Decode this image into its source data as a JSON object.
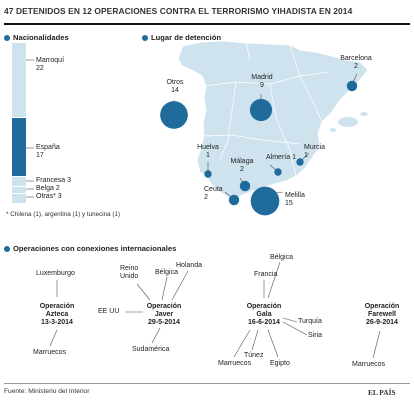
{
  "title": "47 DETENIDOS EN 12 OPERACIONES CONTRA EL TERRORISMO YIHADISTA EN 2014",
  "colors": {
    "light": "#cfe3ef",
    "dark": "#1f6b9b",
    "line": "#555555",
    "title_rule": "#111111"
  },
  "nationalities": {
    "heading": "Nacionalidades",
    "items": [
      {
        "name": "Marroquí",
        "value": 22
      },
      {
        "name": "España",
        "value": 17
      },
      {
        "name": "Francesa",
        "value": 3
      },
      {
        "name": "Belga",
        "value": 2
      },
      {
        "name": "Otras*",
        "value": 3
      }
    ],
    "footnote": "* Chilena (1), argentina (1) y tunecina (1)"
  },
  "detention": {
    "heading": "Lugar de detención",
    "places": [
      {
        "name": "Otros",
        "value": 14
      },
      {
        "name": "Madrid",
        "value": 9
      },
      {
        "name": "Barcelona",
        "value": 2
      },
      {
        "name": "Huelva",
        "value": 1
      },
      {
        "name": "Murcia",
        "value": 1
      },
      {
        "name": "Almería",
        "value": 1
      },
      {
        "name": "Málaga",
        "value": 2
      },
      {
        "name": "Ceuta",
        "value": 2
      },
      {
        "name": "Melilla",
        "value": 15
      }
    ]
  },
  "operations": {
    "heading": "Operaciones con conexiones internacionales",
    "list": [
      {
        "name": "Operación Azteca",
        "date": "13-3-2014",
        "links": [
          "Luxemburgo",
          "Marruecos"
        ]
      },
      {
        "name": "Operación Javer",
        "date": "29-5-2014",
        "links": [
          "Reino Unido",
          "Bélgica",
          "Holanda",
          "EE UU",
          "Sudamérica"
        ]
      },
      {
        "name": "Operación Gala",
        "date": "16-6-2014",
        "links": [
          "Bélgica",
          "Francia",
          "Turquía",
          "Siria",
          "Túnez",
          "Marruecos",
          "Egipto"
        ]
      },
      {
        "name": "Operación Farewell",
        "date": "26-9-2014",
        "links": [
          "Marruecos"
        ]
      }
    ]
  },
  "source": "Fuente: Ministerio del Interior",
  "brand": "EL PAÍS"
}
